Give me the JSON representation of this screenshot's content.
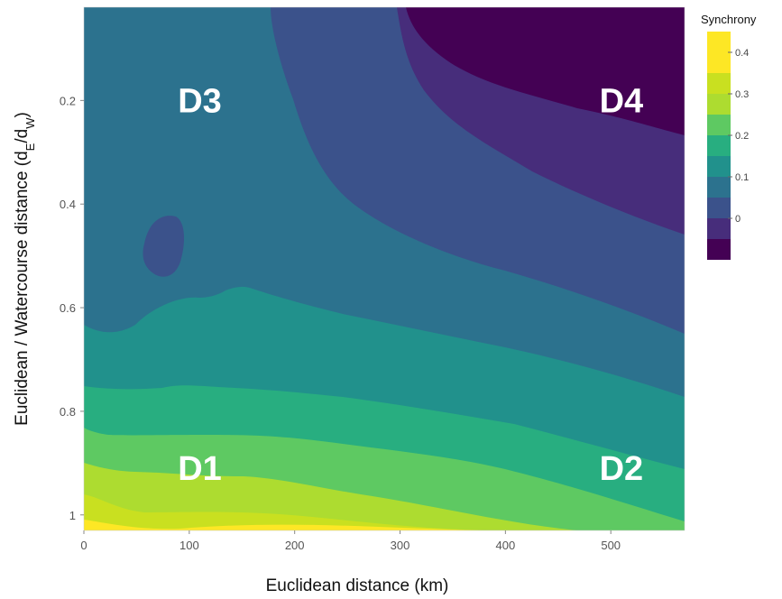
{
  "chart_data": {
    "type": "heatmap",
    "subtype": "filled-contour",
    "xlabel": "Euclidean distance (km)",
    "ylabel_main": "Euclidean / Watercourse distance (d",
    "ylabel_sub_e": "E",
    "ylabel_slash": "/d",
    "ylabel_sub_w": "W",
    "ylabel_close": ")",
    "xlim": [
      0,
      570
    ],
    "ylim": [
      1.03,
      0.02
    ],
    "y_axis_inverted": true,
    "xticks": [
      0,
      100,
      200,
      300,
      400,
      500
    ],
    "yticks": [
      0.2,
      0.4,
      0.6,
      0.8,
      1
    ],
    "ytick_labels": [
      "0.2",
      "0.4",
      "0.6",
      "0.8",
      "1"
    ],
    "colorbar": {
      "title": "Synchrony",
      "ticks": [
        0.4,
        0.3,
        0.2,
        0.1,
        0
      ],
      "tick_labels": [
        "0.4",
        "0.3",
        "0.2",
        "0.1",
        "0"
      ],
      "levels": [
        -0.1,
        -0.05,
        0,
        0.05,
        0.1,
        0.15,
        0.2,
        0.25,
        0.3,
        0.35,
        0.4,
        0.45
      ],
      "colors": [
        "#440154",
        "#472d7b",
        "#3b528b",
        "#2c728e",
        "#21918c",
        "#28ae80",
        "#5ec962",
        "#addc30",
        "#c9e020",
        "#fde725"
      ]
    },
    "region_labels": [
      {
        "text": "D3",
        "x": 110,
        "y": 0.2
      },
      {
        "text": "D4",
        "x": 510,
        "y": 0.2
      },
      {
        "text": "D1",
        "x": 110,
        "y": 0.91
      },
      {
        "text": "D2",
        "x": 510,
        "y": 0.91
      }
    ],
    "contour_bands": [
      {
        "color": "#fde725",
        "points": [
          [
            0,
            1.03
          ],
          [
            570,
            1.03
          ],
          [
            570,
            1.03
          ],
          [
            140,
            1.02
          ],
          [
            0,
            1.02
          ]
        ]
      },
      {
        "color": "#c9e020",
        "points": [
          [
            0,
            1.03
          ],
          [
            570,
            1.03
          ],
          [
            570,
            1.03
          ],
          [
            300,
            1.0
          ],
          [
            0,
            0.98
          ]
        ]
      },
      {
        "color": "#addc30",
        "points": [
          [
            0,
            1.03
          ],
          [
            570,
            1.03
          ],
          [
            570,
            1.03
          ],
          [
            400,
            1.0
          ],
          [
            200,
            0.97
          ],
          [
            0,
            0.95
          ]
        ]
      },
      {
        "color": "#5ec962",
        "points": [
          [
            0,
            1.03
          ],
          [
            570,
            1.03
          ],
          [
            570,
            1.03
          ],
          [
            450,
            1.0
          ],
          [
            300,
            0.94
          ],
          [
            190,
            0.91
          ],
          [
            0,
            0.89
          ]
        ]
      },
      {
        "color": "#28ae80",
        "points": [
          [
            0,
            1.03
          ],
          [
            570,
            1.03
          ],
          [
            570,
            1.01
          ],
          [
            480,
            0.96
          ],
          [
            380,
            0.91
          ],
          [
            280,
            0.86
          ],
          [
            200,
            0.84
          ],
          [
            0,
            0.83
          ]
        ]
      },
      {
        "color": "#21918c",
        "points": [
          [
            0,
            1.03
          ],
          [
            570,
            1.03
          ],
          [
            570,
            0.93
          ],
          [
            470,
            0.87
          ],
          [
            370,
            0.82
          ],
          [
            280,
            0.78
          ],
          [
            190,
            0.75
          ],
          [
            80,
            0.77
          ],
          [
            0,
            0.76
          ]
        ]
      },
      {
        "color": "#2c728e",
        "points": [
          [
            0,
            1.03
          ],
          [
            570,
            1.03
          ],
          [
            570,
            0.79
          ],
          [
            460,
            0.74
          ],
          [
            360,
            0.7
          ],
          [
            260,
            0.66
          ],
          [
            190,
            0.62
          ],
          [
            140,
            0.66
          ],
          [
            60,
            0.63
          ],
          [
            30,
            0.56
          ],
          [
            20,
            0.42
          ],
          [
            40,
            0.26
          ],
          [
            70,
            0.15
          ],
          [
            100,
            0.07
          ],
          [
            110,
            0.02
          ],
          [
            0,
            0.02
          ]
        ]
      },
      {
        "color": "#3b528b",
        "points": [
          [
            0,
            1.03
          ],
          [
            570,
            1.03
          ],
          [
            570,
            0.66
          ],
          [
            470,
            0.58
          ],
          [
            380,
            0.52
          ],
          [
            310,
            0.45
          ],
          [
            260,
            0.34
          ],
          [
            220,
            0.16
          ],
          [
            190,
            0.02
          ],
          [
            0,
            0.02
          ]
        ]
      },
      {
        "color": "#472d7b",
        "points": [
          [
            0,
            1.03
          ],
          [
            570,
            1.03
          ],
          [
            570,
            0.46
          ],
          [
            470,
            0.38
          ],
          [
            400,
            0.3
          ],
          [
            360,
            0.19
          ],
          [
            330,
            0.02
          ],
          [
            0,
            0.02
          ]
        ]
      },
      {
        "color": "#440154",
        "points": [
          [
            0,
            1.03
          ],
          [
            570,
            1.03
          ],
          [
            570,
            0.36
          ],
          [
            470,
            0.28
          ],
          [
            410,
            0.2
          ],
          [
            380,
            0.1
          ],
          [
            370,
            0.02
          ],
          [
            0,
            0.02
          ]
        ]
      }
    ]
  }
}
